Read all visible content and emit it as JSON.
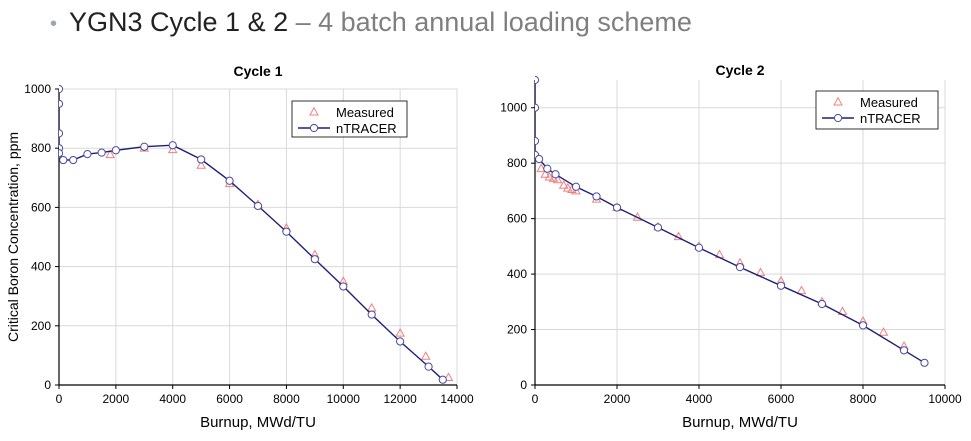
{
  "header": {
    "bullet": "•",
    "title": "YGN3 Cycle 1 & 2",
    "separator": " – ",
    "subtitle": "4 batch annual loading scheme"
  },
  "colors": {
    "measured": "#f08080",
    "ntracer_line": "#1f1f7a",
    "ntracer_marker_edge": "#4a4aa0",
    "grid": "#d9d9d9",
    "axis": "#000000"
  },
  "chart_data": [
    {
      "type": "line",
      "title": "Cycle 1",
      "xlabel": "Burnup, MWd/TU",
      "ylabel": "Critical Boron Concentration, ppm",
      "xlim": [
        0,
        14000
      ],
      "ylim": [
        0,
        1000
      ],
      "xticks": [
        0,
        2000,
        4000,
        6000,
        8000,
        10000,
        12000,
        14000
      ],
      "yticks": [
        0,
        200,
        400,
        600,
        800,
        1000
      ],
      "grid": true,
      "legend": "top-right",
      "series": [
        {
          "name": "Measured",
          "marker": "triangle",
          "line": false,
          "x": [
            1800,
            3000,
            4000,
            5000,
            6000,
            7000,
            8000,
            9000,
            10000,
            11000,
            12000,
            12900,
            13700
          ],
          "y": [
            778,
            800,
            795,
            742,
            680,
            610,
            530,
            440,
            350,
            260,
            175,
            97,
            25
          ]
        },
        {
          "name": "nTRACER",
          "marker": "circle",
          "line": true,
          "x": [
            0,
            0,
            0,
            0,
            0,
            150,
            500,
            1000,
            1500,
            2000,
            3000,
            4000,
            5000,
            6000,
            7000,
            8000,
            9000,
            10000,
            11000,
            12000,
            13000,
            13500
          ],
          "y": [
            1000,
            950,
            850,
            800,
            783,
            760,
            760,
            780,
            785,
            793,
            805,
            810,
            762,
            690,
            605,
            518,
            425,
            333,
            238,
            147,
            62,
            18
          ]
        }
      ]
    },
    {
      "type": "line",
      "title": "Cycle 2",
      "xlabel": "Burnup, MWd/TU",
      "ylabel": "",
      "xlim": [
        0,
        10000
      ],
      "ylim": [
        0,
        1100
      ],
      "xticks": [
        0,
        2000,
        4000,
        6000,
        8000,
        10000
      ],
      "yticks": [
        0,
        200,
        400,
        600,
        800,
        1000
      ],
      "grid": true,
      "legend": "top-right",
      "series": [
        {
          "name": "Measured",
          "marker": "triangle",
          "line": false,
          "x": [
            150,
            250,
            350,
            450,
            550,
            700,
            800,
            900,
            1000,
            1500,
            2000,
            2500,
            3000,
            3500,
            4000,
            4500,
            5000,
            5500,
            6000,
            6500,
            7000,
            7500,
            8000,
            8500,
            9000
          ],
          "y": [
            780,
            760,
            750,
            745,
            740,
            720,
            710,
            705,
            700,
            670,
            640,
            605,
            570,
            535,
            500,
            470,
            440,
            405,
            375,
            340,
            300,
            265,
            230,
            190,
            140
          ]
        },
        {
          "name": "nTRACER",
          "marker": "circle",
          "line": true,
          "x": [
            0,
            0,
            0,
            0,
            100,
            300,
            500,
            1000,
            1500,
            2000,
            3000,
            4000,
            5000,
            6000,
            7000,
            8000,
            9000,
            9500
          ],
          "y": [
            1100,
            1000,
            880,
            830,
            815,
            780,
            760,
            715,
            680,
            640,
            568,
            495,
            425,
            358,
            292,
            215,
            125,
            80
          ]
        }
      ]
    }
  ]
}
